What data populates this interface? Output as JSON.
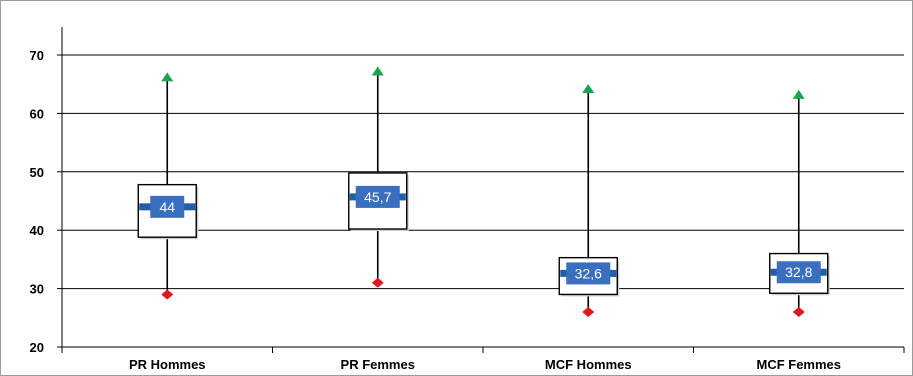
{
  "chart_data": {
    "type": "box",
    "title": "",
    "xlabel": "",
    "ylabel": "",
    "ylim": [
      20,
      70
    ],
    "yticks": [
      20,
      30,
      40,
      50,
      60,
      70
    ],
    "grid": true,
    "categories": [
      "PR Hommes",
      "PR Femmes",
      "MCF Hommes",
      "MCF Femmes"
    ],
    "boxes": [
      {
        "category": "PR Hommes",
        "min": 29,
        "q1": 38.8,
        "q3": 47.8,
        "max": 66,
        "mean": 44,
        "mean_label": "44"
      },
      {
        "category": "PR Femmes",
        "min": 31,
        "q1": 40.2,
        "q3": 49.8,
        "max": 67,
        "mean": 45.7,
        "mean_label": "45,7"
      },
      {
        "category": "MCF Hommes",
        "min": 26,
        "q1": 29.0,
        "q3": 35.3,
        "max": 64,
        "mean": 32.6,
        "mean_label": "32,6"
      },
      {
        "category": "MCF Femmes",
        "min": 26,
        "q1": 29.2,
        "q3": 36.0,
        "max": 63,
        "mean": 32.8,
        "mean_label": "32,8"
      }
    ],
    "colors": {
      "max_marker": "#1aa352",
      "min_marker": "#e0161c",
      "mean_label_bg": "#3a6fbf",
      "mean_bar": "#1f5fa8",
      "box_stroke": "#000000",
      "gridline": "#000000"
    }
  }
}
